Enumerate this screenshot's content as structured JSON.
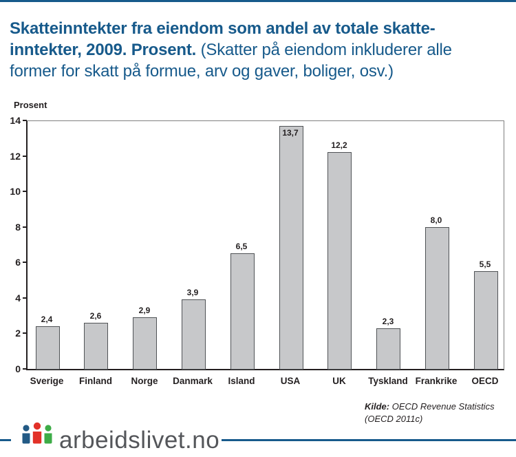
{
  "header": {
    "line1_bold": "Skatteinntekter fra eiendom som andel av totale skatte-",
    "line2_bold": "inntekter, 2009. Prosent.",
    "line2_normal": " (Skatter på eiendom inkluderer alle",
    "line3_normal": "former for skatt på formue, arv og gaver, boliger, osv.)"
  },
  "chart_data": {
    "type": "bar",
    "title": "Skatteinntekter fra eiendom som andel av totale skatteinntekter, 2009. Prosent.",
    "ylabel": "Prosent",
    "xlabel": "",
    "categories": [
      "Sverige",
      "Finland",
      "Norge",
      "Danmark",
      "Island",
      "USA",
      "UK",
      "Tyskland",
      "Frankrike",
      "OECD"
    ],
    "values": [
      2.4,
      2.6,
      2.9,
      3.9,
      6.5,
      13.7,
      12.2,
      2.3,
      8.0,
      5.5
    ],
    "value_labels": [
      "2,4",
      "2,6",
      "2,9",
      "3,9",
      "6,5",
      "13,7",
      "12,2",
      "2,3",
      "8,0",
      "5,5"
    ],
    "yticks": [
      0,
      2,
      4,
      6,
      8,
      10,
      12,
      14
    ],
    "ylim": [
      0,
      14
    ],
    "grid": false,
    "legend": "none",
    "bar_color": "#c7c8ca",
    "bar_border_color": "#4f5255"
  },
  "source": {
    "label_bold": "Kilde:",
    "line1_rest": " OECD Revenue Statistics",
    "line2": "(OECD 2011c)"
  },
  "footer": {
    "logo_text": "arbeidslivet.no",
    "logo_person_colors": {
      "left": "#235a85",
      "middle": "#e23128",
      "right": "#3dac47"
    }
  },
  "colors": {
    "brand_blue": "#175a8b",
    "axis_black": "#231f20",
    "plot_border_gray": "#7f7f7f",
    "logo_text_gray": "#54565a"
  }
}
